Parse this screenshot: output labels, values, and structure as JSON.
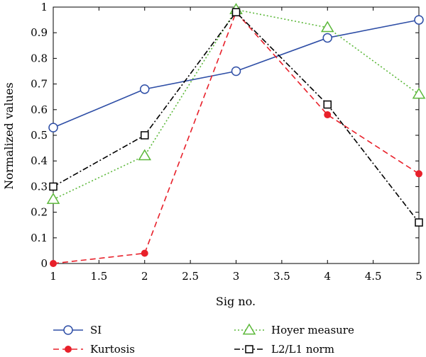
{
  "chart_data": {
    "type": "line",
    "title": "",
    "xlabel": "Sig no.",
    "ylabel": "Normalized values",
    "xlim": [
      1,
      5
    ],
    "ylim": [
      0,
      1
    ],
    "xticks": [
      "1",
      "1.5",
      "2",
      "2.5",
      "3",
      "3.5",
      "4",
      "4.5",
      "5"
    ],
    "yticks": [
      "0",
      "0.1",
      "0.2",
      "0.3",
      "0.4",
      "0.5",
      "0.6",
      "0.7",
      "0.8",
      "0.9",
      "1"
    ],
    "x": [
      1,
      2,
      3,
      4,
      5
    ],
    "grid": false,
    "legend_placement": "bottom",
    "series": [
      {
        "name": "SI",
        "values": [
          0.53,
          0.68,
          0.75,
          0.88,
          0.95
        ],
        "color": "#2e4ea6",
        "line": "solid",
        "marker": "circle"
      },
      {
        "name": "Kurtosis",
        "values": [
          0.0,
          0.04,
          0.98,
          0.58,
          0.35
        ],
        "color": "#e8202a",
        "line": "dashed",
        "marker": "filled-dot"
      },
      {
        "name": "Hoyer measure",
        "values": [
          0.25,
          0.42,
          0.99,
          0.92,
          0.66
        ],
        "color": "#5cb83a",
        "line": "dotted",
        "marker": "triangle"
      },
      {
        "name": "L2/L1 norm",
        "values": [
          0.3,
          0.5,
          0.98,
          0.62,
          0.16
        ],
        "color": "#000000",
        "line": "dashdot",
        "marker": "square"
      }
    ]
  }
}
